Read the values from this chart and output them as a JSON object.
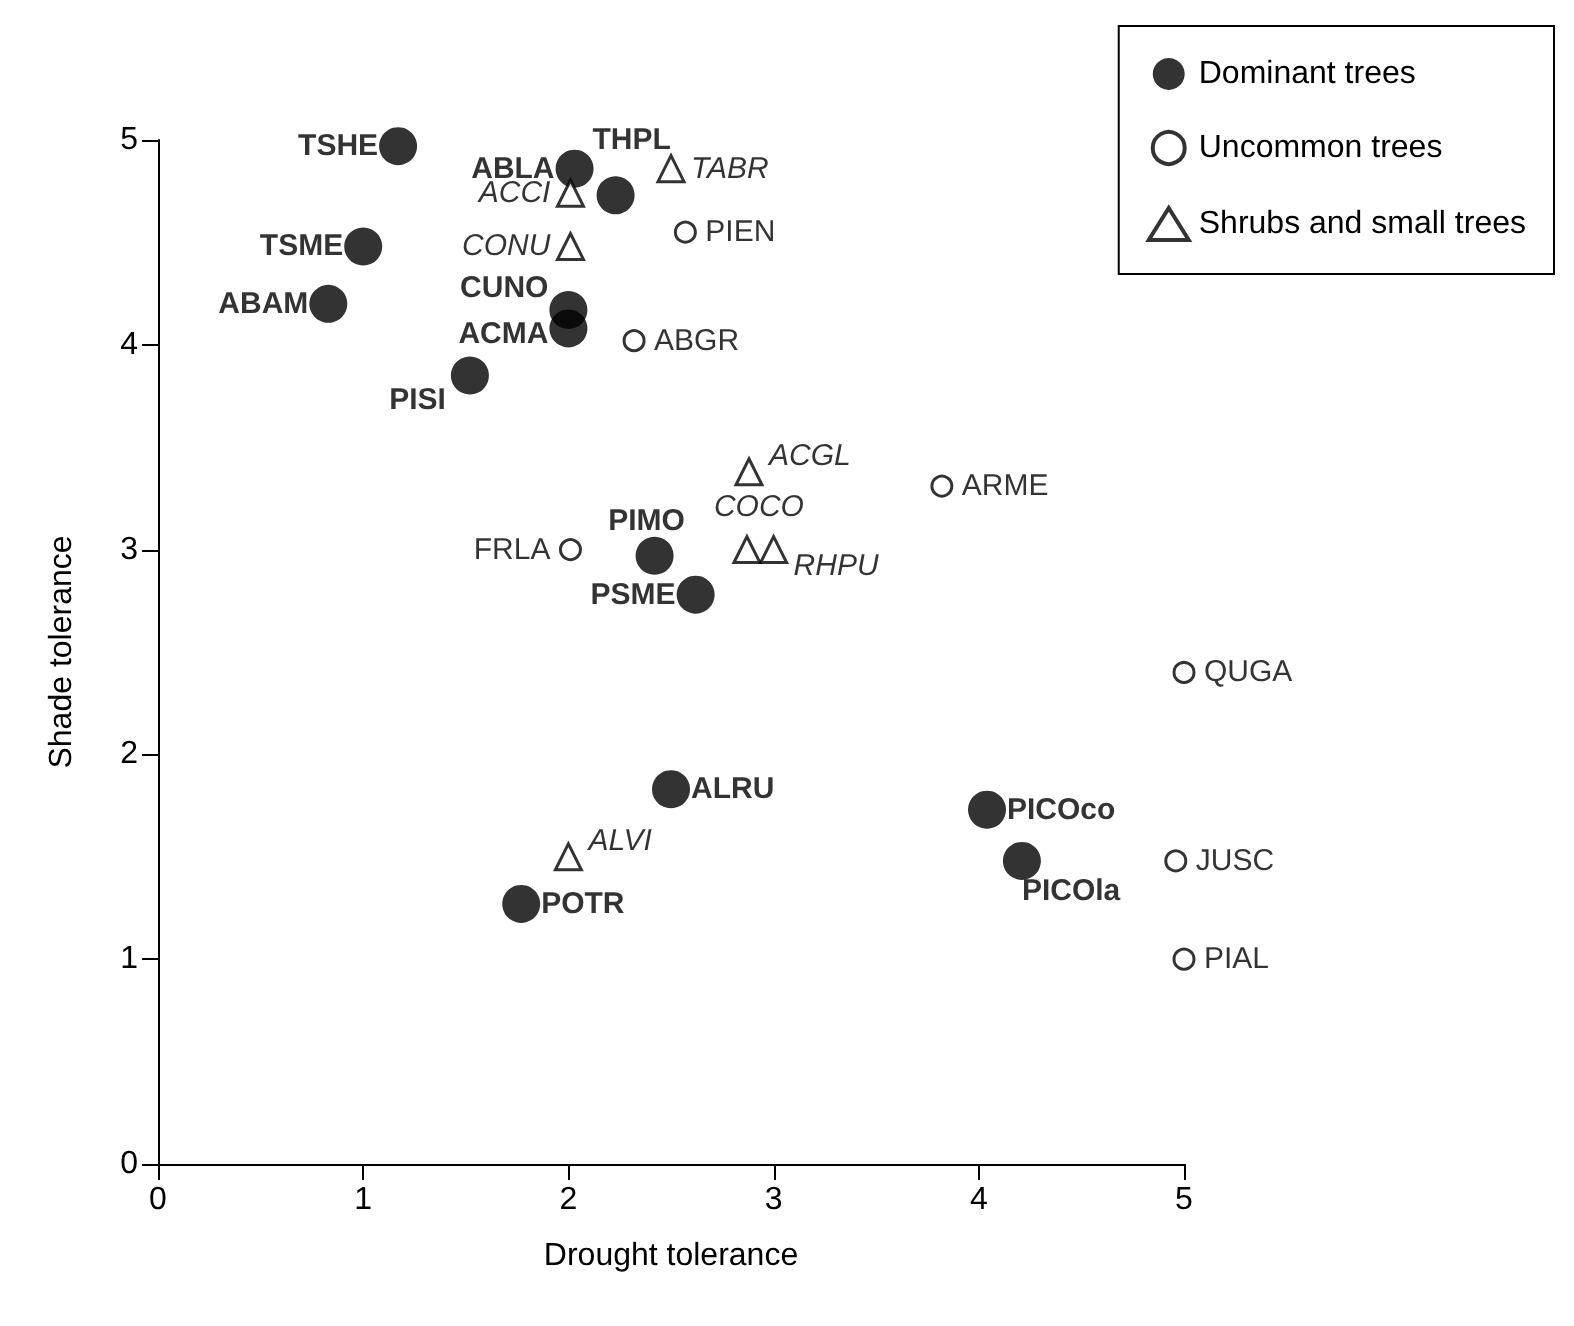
{
  "chart_data": {
    "type": "scatter",
    "xlabel": "Drought tolerance",
    "ylabel": "Shade tolerance",
    "xlim": [
      0,
      5
    ],
    "ylim": [
      0,
      5
    ],
    "xticks": [
      0,
      1,
      2,
      3,
      4,
      5
    ],
    "yticks": [
      0,
      1,
      2,
      3,
      4,
      5
    ],
    "grid": false,
    "legend": "top right",
    "series": [
      {
        "name": "Dominant trees",
        "color": "#000000",
        "marker": "circle",
        "x": [
          1.17,
          2.03,
          2.23,
          1.0,
          0.83,
          2.0,
          2.0,
          1.52,
          2.42,
          2.62,
          2.5,
          4.04,
          4.21,
          1.77
        ],
        "values": [
          4.97,
          4.86,
          4.73,
          4.48,
          4.2,
          4.17,
          4.08,
          3.85,
          2.97,
          2.78,
          1.83,
          1.73,
          1.48,
          1.27
        ]
      },
      {
        "name": "Uncommon trees",
        "color": "#000000",
        "marker": "circle",
        "x": [
          2.57,
          2.32,
          2.01,
          3.82,
          5.0,
          4.96,
          5.0
        ],
        "values": [
          4.55,
          4.02,
          3.0,
          3.31,
          2.4,
          1.48,
          1.0
        ]
      },
      {
        "name": "Shrubs and small trees",
        "color": "#000000",
        "marker": "triangle",
        "x": [
          2.01,
          2.5,
          2.01,
          2.88,
          2.87,
          3.0,
          2.0
        ],
        "values": [
          4.74,
          4.86,
          4.48,
          3.38,
          3.0,
          3.0,
          1.5
        ]
      }
    ],
    "annotations": [
      {
        "text": "TSHE",
        "x": 1.17,
        "y": 4.97
      },
      {
        "text": "ABLA",
        "x": 2.03,
        "y": 4.86
      },
      {
        "text": "THPL",
        "x": 2.23,
        "y": 4.73
      },
      {
        "text": "TSME",
        "x": 1.0,
        "y": 4.48
      },
      {
        "text": "ABAM",
        "x": 0.83,
        "y": 4.2
      },
      {
        "text": "CUNO",
        "x": 2.0,
        "y": 4.17
      },
      {
        "text": "ACMA",
        "x": 2.0,
        "y": 4.08
      },
      {
        "text": "PISI",
        "x": 1.52,
        "y": 3.85
      },
      {
        "text": "PIMO",
        "x": 2.42,
        "y": 2.97
      },
      {
        "text": "PSME",
        "x": 2.62,
        "y": 2.78
      },
      {
        "text": "ALRU",
        "x": 2.5,
        "y": 1.83
      },
      {
        "text": "PICOco",
        "x": 4.04,
        "y": 1.73
      },
      {
        "text": "PICOla",
        "x": 4.21,
        "y": 1.48
      },
      {
        "text": "POTR",
        "x": 1.77,
        "y": 1.27
      },
      {
        "text": "PIEN",
        "x": 2.57,
        "y": 4.55
      },
      {
        "text": "ABGR",
        "x": 2.32,
        "y": 4.02
      },
      {
        "text": "FRLA",
        "x": 2.01,
        "y": 3.0
      },
      {
        "text": "ARME",
        "x": 3.82,
        "y": 3.31
      },
      {
        "text": "QUGA",
        "x": 5.0,
        "y": 2.4
      },
      {
        "text": "JUSC",
        "x": 4.96,
        "y": 1.48
      },
      {
        "text": "PIAL",
        "x": 5.0,
        "y": 1.0
      },
      {
        "text": "ACCI",
        "x": 2.01,
        "y": 4.74
      },
      {
        "text": "TABR",
        "x": 2.5,
        "y": 4.86
      },
      {
        "text": "CONU",
        "x": 2.01,
        "y": 4.48
      },
      {
        "text": "ACGL",
        "x": 2.88,
        "y": 3.38
      },
      {
        "text": "COCO",
        "x": 2.87,
        "y": 3.0
      },
      {
        "text": "RHPU",
        "x": 3.0,
        "y": 3.0
      },
      {
        "text": "ALVI",
        "x": 2.0,
        "y": 1.5
      }
    ]
  }
}
